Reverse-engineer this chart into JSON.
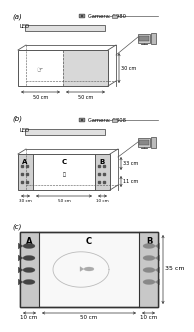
{
  "bg_color": "#ffffff",
  "panel_labels": [
    "(a)",
    "(b)",
    "(c)"
  ],
  "camera_labels": [
    "Camera: C980",
    "Camera: C808"
  ],
  "led_label": "LED",
  "section_labels": [
    "A",
    "C",
    "B"
  ],
  "dim_a_left": "50 cm",
  "dim_a_right": "50 cm",
  "dim_a_height": "30 cm",
  "dim_b_left": "30 cm",
  "dim_b_mid": "50 cm",
  "dim_b_right": "10 cm",
  "dim_b_height": "33 cm",
  "dim_b_bot": "11 cm",
  "dim_c_left": "10 cm",
  "dim_c_mid": "50 cm",
  "dim_c_right": "10 cm",
  "dim_c_side": "35 cm",
  "tank_color": "#e8e8e8",
  "tank_shade": "#d0d0d0",
  "line_color": "#555555",
  "fish_dark": "#444444",
  "fish_light": "#888888",
  "monitor_body": "#cccccc",
  "monitor_screen": "#888888",
  "pc_body": "#bbbbbb"
}
